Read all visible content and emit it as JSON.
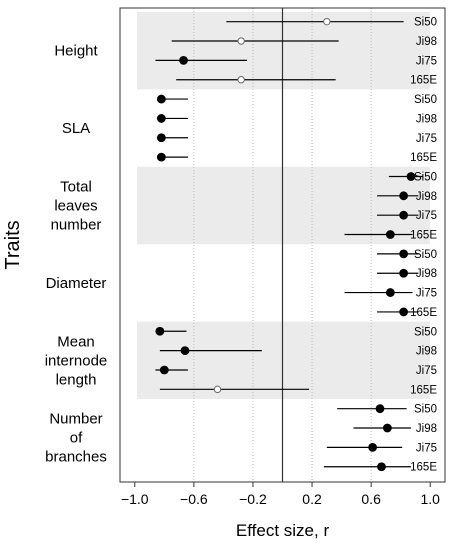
{
  "colors": {
    "band": "#ebebeb",
    "mark": "#000000",
    "open_marker_stroke": "#6a6a6a",
    "grid": "#bbbbbb"
  },
  "chart_data": {
    "type": "forest",
    "xlabel": "Effect size, r",
    "ylabel": "Traits",
    "xlim": [
      -1.1,
      1.1
    ],
    "xticks": [
      -1.0,
      -0.6,
      -0.2,
      0.2,
      0.6,
      1.0
    ],
    "xtick_labels": [
      "−1.0",
      "−0.6",
      "−0.2",
      "0.2",
      "0.6",
      "1.0"
    ],
    "vertical_gridlines": [
      -0.6,
      -0.2,
      0.2,
      0.6
    ],
    "reference_line": 0,
    "marker_legend_note": "",
    "traits": [
      {
        "name_lines": [
          "Height"
        ],
        "shaded": true,
        "rows": [
          {
            "clone": "Si50",
            "r": 0.3,
            "lo": -0.38,
            "hi": 0.82,
            "marker": "open"
          },
          {
            "clone": "Ji98",
            "r": -0.28,
            "lo": -0.75,
            "hi": 0.38,
            "marker": "open"
          },
          {
            "clone": "Ji75",
            "r": -0.67,
            "lo": -0.86,
            "hi": -0.24,
            "marker": "filled"
          },
          {
            "clone": "165E",
            "r": -0.28,
            "lo": -0.72,
            "hi": 0.36,
            "marker": "open"
          }
        ]
      },
      {
        "name_lines": [
          "SLA"
        ],
        "shaded": false,
        "rows": [
          {
            "clone": "Si50",
            "r": -0.82,
            "lo": -0.85,
            "hi": -0.64,
            "marker": "filled"
          },
          {
            "clone": "Ji98",
            "r": -0.82,
            "lo": -0.85,
            "hi": -0.64,
            "marker": "filled"
          },
          {
            "clone": "Ji75",
            "r": -0.82,
            "lo": -0.85,
            "hi": -0.64,
            "marker": "filled"
          },
          {
            "clone": "165E",
            "r": -0.82,
            "lo": -0.85,
            "hi": -0.64,
            "marker": "filled"
          }
        ]
      },
      {
        "name_lines": [
          "Total",
          "leaves",
          "number"
        ],
        "shaded": true,
        "rows": [
          {
            "clone": "Si50",
            "r": 0.87,
            "lo": 0.72,
            "hi": 0.95,
            "marker": "filled"
          },
          {
            "clone": "Ji98",
            "r": 0.82,
            "lo": 0.64,
            "hi": 0.92,
            "marker": "filled"
          },
          {
            "clone": "Ji75",
            "r": 0.82,
            "lo": 0.64,
            "hi": 0.92,
            "marker": "filled"
          },
          {
            "clone": "165E",
            "r": 0.73,
            "lo": 0.42,
            "hi": 0.88,
            "marker": "filled"
          }
        ]
      },
      {
        "name_lines": [
          "Diameter"
        ],
        "shaded": false,
        "rows": [
          {
            "clone": "Si50",
            "r": 0.82,
            "lo": 0.64,
            "hi": 0.92,
            "marker": "filled"
          },
          {
            "clone": "Ji98",
            "r": 0.82,
            "lo": 0.64,
            "hi": 0.92,
            "marker": "filled"
          },
          {
            "clone": "Ji75",
            "r": 0.73,
            "lo": 0.42,
            "hi": 0.88,
            "marker": "filled"
          },
          {
            "clone": "165E",
            "r": 0.82,
            "lo": 0.64,
            "hi": 0.92,
            "marker": "filled"
          }
        ]
      },
      {
        "name_lines": [
          "Mean",
          "internode",
          "length"
        ],
        "shaded": true,
        "rows": [
          {
            "clone": "Si50",
            "r": -0.83,
            "lo": -0.86,
            "hi": -0.65,
            "marker": "filled"
          },
          {
            "clone": "Ji98",
            "r": -0.66,
            "lo": -0.83,
            "hi": -0.14,
            "marker": "filled"
          },
          {
            "clone": "Ji75",
            "r": -0.8,
            "lo": -0.86,
            "hi": -0.64,
            "marker": "filled"
          },
          {
            "clone": "165E",
            "r": -0.44,
            "lo": -0.83,
            "hi": 0.18,
            "marker": "open"
          }
        ]
      },
      {
        "name_lines": [
          "Number",
          "of",
          "branches"
        ],
        "shaded": false,
        "rows": [
          {
            "clone": "Si50",
            "r": 0.66,
            "lo": 0.37,
            "hi": 0.84,
            "marker": "filled"
          },
          {
            "clone": "Ji98",
            "r": 0.71,
            "lo": 0.48,
            "hi": 0.87,
            "marker": "filled"
          },
          {
            "clone": "Ji75",
            "r": 0.61,
            "lo": 0.3,
            "hi": 0.81,
            "marker": "filled"
          },
          {
            "clone": "165E",
            "r": 0.67,
            "lo": 0.28,
            "hi": 0.87,
            "marker": "filled"
          }
        ]
      }
    ]
  }
}
